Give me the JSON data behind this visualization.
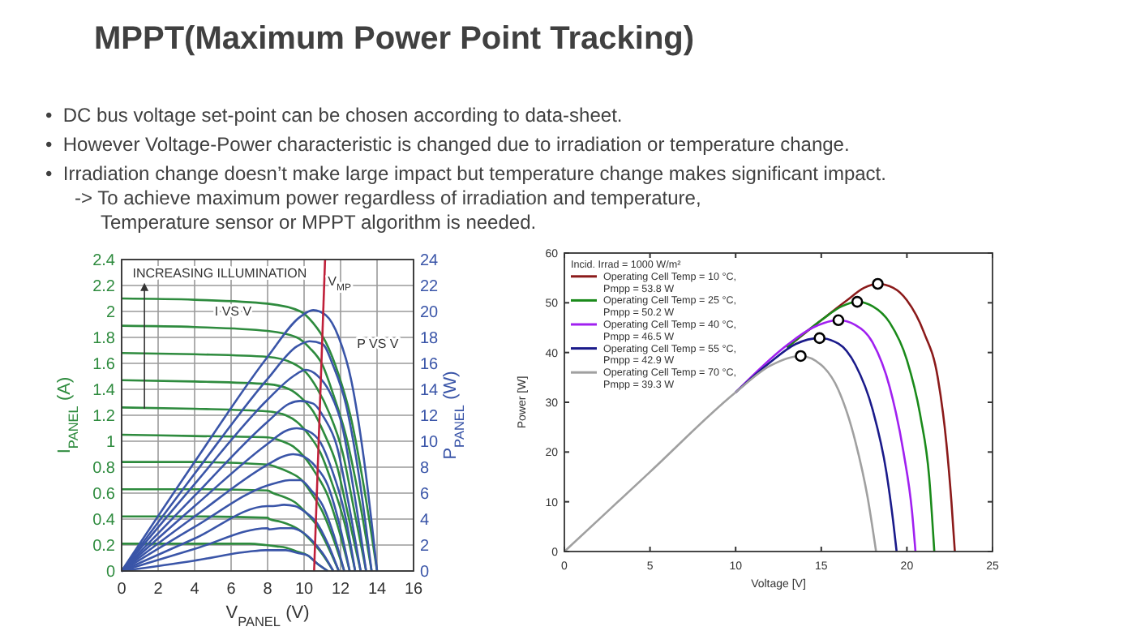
{
  "chart_data": [
    {
      "type": "other",
      "title": "MPPT(Maximum Power Point Tracking)",
      "annotations": [
        "•  DC bus voltage set-point can be chosen according to data-sheet.",
        "•  However Voltage-Power characteristic is changed due to irradiation or temperature change.",
        "•  Irradiation change doesn’t make large impact but temperature change makes significant impact.\n-> To achieve maximum power regardless of irradiation and temperature,\nTemperature sensor or MPPT algorithm is needed."
      ]
    },
    {
      "type": "line",
      "xlabel": "V$_{PANEL}$ (V)",
      "ylabel": "I$_{PANEL}$ (A)",
      "y2label": "P$_{PANEL}$ (W)",
      "xlim": [
        0,
        16
      ],
      "xticks": [
        0,
        2,
        4,
        6,
        8,
        10,
        12,
        14,
        16
      ],
      "ylim": [
        0,
        2.4
      ],
      "yticks": [
        0,
        0.2,
        0.4,
        0.6,
        0.8,
        1,
        1.2,
        1.4,
        1.6,
        1.8,
        2,
        2.2,
        2.4
      ],
      "y2lim": [
        0,
        24
      ],
      "y2ticks": [
        0,
        2,
        4,
        6,
        8,
        10,
        12,
        14,
        16,
        18,
        20,
        22,
        24
      ],
      "grid": true,
      "annotations": [
        "INCREASING ILLUMINATION",
        "I VS V",
        "P VS V",
        "V$_{MP}$"
      ],
      "series": [
        {
          "color": "#2e8b3e",
          "x": [
            0,
            4,
            8,
            9.8,
            10.5,
            11.2,
            11.9,
            12.6,
            13.3,
            14.0
          ],
          "values": [
            2.1,
            2.09,
            2.06,
            2.0,
            1.91,
            1.76,
            1.51,
            1.16,
            0.63,
            0
          ]
        },
        {
          "color": "#2e8b3e",
          "x": [
            0,
            4,
            8,
            9.6,
            10.3,
            11.0,
            11.6,
            12.3,
            13.0,
            13.7
          ],
          "values": [
            1.89,
            1.88,
            1.85,
            1.8,
            1.72,
            1.59,
            1.36,
            1.04,
            0.57,
            0
          ]
        },
        {
          "color": "#2e8b3e",
          "x": [
            0,
            4,
            8,
            9.4,
            10.1,
            10.7,
            11.4,
            12.1,
            12.7,
            13.4
          ],
          "values": [
            1.68,
            1.67,
            1.65,
            1.6,
            1.53,
            1.41,
            1.21,
            0.92,
            0.5,
            0
          ]
        },
        {
          "color": "#2e8b3e",
          "x": [
            0,
            4,
            8,
            9.2,
            9.8,
            10.5,
            11.1,
            11.8,
            12.4,
            13.1
          ],
          "values": [
            1.47,
            1.46,
            1.44,
            1.4,
            1.34,
            1.23,
            1.06,
            0.81,
            0.44,
            0
          ]
        },
        {
          "color": "#2e8b3e",
          "x": [
            0,
            4,
            8,
            9.0,
            9.6,
            10.2,
            10.9,
            11.5,
            12.2,
            12.8
          ],
          "values": [
            1.26,
            1.25,
            1.23,
            1.2,
            1.15,
            1.06,
            0.91,
            0.69,
            0.38,
            0
          ]
        },
        {
          "color": "#2e8b3e",
          "x": [
            0,
            4,
            8,
            8.8,
            9.4,
            10.0,
            10.6,
            11.3,
            11.9,
            12.5
          ],
          "values": [
            1.05,
            1.04,
            1.03,
            1.0,
            0.96,
            0.88,
            0.76,
            0.58,
            0.32,
            0
          ]
        },
        {
          "color": "#2e8b3e",
          "x": [
            0,
            4,
            8,
            8.5,
            9.2,
            9.8,
            10.4,
            11.0,
            11.6,
            12.2
          ],
          "values": [
            0.84,
            0.84,
            0.82,
            0.8,
            0.76,
            0.71,
            0.6,
            0.46,
            0.25,
            0
          ]
        },
        {
          "color": "#2e8b3e",
          "x": [
            0,
            4,
            8,
            8.3,
            8.9,
            9.5,
            10.1,
            10.7,
            11.3,
            11.9
          ],
          "values": [
            0.63,
            0.63,
            0.62,
            0.6,
            0.57,
            0.53,
            0.45,
            0.35,
            0.19,
            0
          ]
        },
        {
          "color": "#2e8b3e",
          "x": [
            0,
            4,
            8,
            8.1,
            8.7,
            9.3,
            9.9,
            10.4,
            11.0,
            11.6
          ],
          "values": [
            0.42,
            0.42,
            0.41,
            0.4,
            0.38,
            0.35,
            0.3,
            0.23,
            0.13,
            0
          ]
        },
        {
          "color": "#2e8b3e",
          "x": [
            0,
            4,
            7,
            7.9,
            8.5,
            9.0,
            9.6,
            10.2,
            10.7,
            11.3
          ],
          "values": [
            0.21,
            0.21,
            0.21,
            0.2,
            0.19,
            0.18,
            0.15,
            0.12,
            0.06,
            0
          ]
        },
        {
          "color": "#3a55a8",
          "axis": "y2",
          "x": [
            0,
            4,
            8,
            9.8,
            10.5,
            11.2,
            11.9,
            12.6,
            13.3,
            14.0
          ],
          "values": [
            0,
            8.4,
            16.5,
            19.6,
            20.1,
            19.7,
            18.0,
            14.6,
            8.4,
            0
          ]
        },
        {
          "color": "#3a55a8",
          "axis": "y2",
          "x": [
            0,
            4,
            8,
            9.6,
            10.3,
            11.0,
            11.6,
            12.3,
            13.0,
            13.7
          ],
          "values": [
            0,
            7.5,
            14.8,
            17.3,
            17.7,
            17.5,
            15.8,
            12.8,
            7.4,
            0
          ]
        },
        {
          "color": "#3a55a8",
          "axis": "y2",
          "x": [
            0,
            4,
            8,
            9.4,
            10.1,
            10.7,
            11.4,
            12.1,
            12.7,
            13.4
          ],
          "values": [
            0,
            6.7,
            13.2,
            15.0,
            15.5,
            15.1,
            13.8,
            11.1,
            6.4,
            0
          ]
        },
        {
          "color": "#3a55a8",
          "axis": "y2",
          "x": [
            0,
            4,
            8,
            9.2,
            9.8,
            10.5,
            11.1,
            11.8,
            12.4,
            13.1
          ],
          "values": [
            0,
            5.8,
            11.5,
            12.9,
            13.1,
            12.9,
            11.8,
            9.6,
            5.5,
            0
          ]
        },
        {
          "color": "#3a55a8",
          "axis": "y2",
          "x": [
            0,
            4,
            8,
            9.0,
            9.6,
            10.2,
            10.9,
            11.5,
            12.2,
            12.8
          ],
          "values": [
            0,
            5.0,
            9.8,
            10.8,
            11.0,
            10.8,
            9.9,
            7.9,
            4.6,
            0
          ]
        },
        {
          "color": "#3a55a8",
          "axis": "y2",
          "x": [
            0,
            4,
            8,
            8.8,
            9.4,
            10.0,
            10.6,
            11.3,
            11.9,
            12.5
          ],
          "values": [
            0,
            4.2,
            8.2,
            8.8,
            9.0,
            8.8,
            8.1,
            6.6,
            3.8,
            0
          ]
        },
        {
          "color": "#3a55a8",
          "axis": "y2",
          "x": [
            0,
            4,
            8,
            8.5,
            9.2,
            9.8,
            10.4,
            11.0,
            11.6,
            12.2
          ],
          "values": [
            0,
            3.4,
            6.6,
            6.8,
            7.0,
            7.0,
            6.2,
            5.1,
            2.9,
            0
          ]
        },
        {
          "color": "#3a55a8",
          "axis": "y2",
          "x": [
            0,
            4,
            8,
            8.3,
            8.9,
            9.5,
            10.1,
            10.7,
            11.3,
            11.9
          ],
          "values": [
            0,
            2.5,
            5.0,
            5.0,
            5.1,
            5.0,
            4.5,
            3.7,
            2.1,
            0
          ]
        },
        {
          "color": "#3a55a8",
          "axis": "y2",
          "x": [
            0,
            4,
            8,
            8.1,
            8.7,
            9.3,
            9.9,
            10.4,
            11.0,
            11.6
          ],
          "values": [
            0,
            1.7,
            3.3,
            3.2,
            3.3,
            3.3,
            3.0,
            2.4,
            1.4,
            0
          ]
        },
        {
          "color": "#3a55a8",
          "axis": "y2",
          "x": [
            0,
            4,
            7,
            7.9,
            8.5,
            9.0,
            9.6,
            10.2,
            10.7,
            11.3
          ],
          "values": [
            0,
            0.8,
            1.5,
            1.6,
            1.6,
            1.6,
            1.4,
            1.2,
            0.6,
            0
          ]
        },
        {
          "color": "#c0203a",
          "x": [
            10.55,
            11.15
          ],
          "values": [
            0,
            2.4
          ]
        }
      ]
    },
    {
      "type": "line",
      "xlabel": "Voltage [V]",
      "ylabel": "Power [W]",
      "xlim": [
        0,
        25
      ],
      "xticks": [
        0,
        5,
        10,
        15,
        20,
        25
      ],
      "ylim": [
        0,
        60
      ],
      "yticks": [
        0,
        10,
        20,
        30,
        40,
        50,
        60
      ],
      "legend": "top left",
      "legend_title": "Incid. Irrad = 1000 W/m²",
      "series": [
        {
          "name": "Operating Cell Temp = 10 °C, Pmpp = 53.8 W",
          "color": "#8b1a1a",
          "x": [
            13,
            15,
            16.5,
            17.5,
            18.3,
            19.2,
            20,
            21,
            21.8,
            22.3,
            22.6,
            22.8
          ],
          "values": [
            41,
            46.5,
            50.5,
            53,
            53.8,
            53,
            50.5,
            44,
            35,
            22,
            10,
            0
          ]
        },
        {
          "name": "Operating Cell Temp = 25 °C, Pmpp = 50.2 W",
          "color": "#1a8a1a",
          "x": [
            13,
            15,
            16.2,
            17.1,
            18,
            19,
            20,
            20.8,
            21.3,
            21.6
          ],
          "values": [
            41,
            46.5,
            49.3,
            50.2,
            49.3,
            46,
            38.5,
            27,
            15,
            0
          ]
        },
        {
          "name": "Operating Cell Temp = 40 °C, Pmpp = 46.5 W",
          "color": "#a020f0",
          "x": [
            10,
            13,
            14.5,
            16,
            17,
            18,
            19,
            19.8,
            20.3,
            20.5
          ],
          "values": [
            32,
            41.5,
            45,
            46.5,
            45.5,
            42,
            33,
            20,
            8,
            0
          ]
        },
        {
          "name": "Operating Cell Temp = 55 °C, Pmpp = 42.9 W",
          "color": "#1a1a8a",
          "x": [
            10,
            12,
            13.5,
            14.9,
            16,
            17,
            18,
            18.8,
            19.2,
            19.4
          ],
          "values": [
            32,
            38,
            41.7,
            42.9,
            41.8,
            37.5,
            28.5,
            16,
            6,
            0
          ]
        },
        {
          "name": "Operating Cell Temp = 70 °C, Pmpp = 39.3 W",
          "color": "#a0a0a0",
          "x": [
            0,
            5,
            10,
            12,
            13.8,
            15,
            16,
            17,
            17.7,
            18.2
          ],
          "values": [
            0,
            16,
            32,
            37.3,
            39.3,
            37.5,
            32.5,
            22,
            11,
            0
          ]
        },
        {
          "type": "scatter",
          "marker": "circle",
          "color": "#000000",
          "x": [
            18.3,
            17.1,
            16.0,
            14.9,
            13.8
          ],
          "values": [
            53.8,
            50.2,
            46.5,
            42.9,
            39.3
          ]
        }
      ]
    }
  ]
}
